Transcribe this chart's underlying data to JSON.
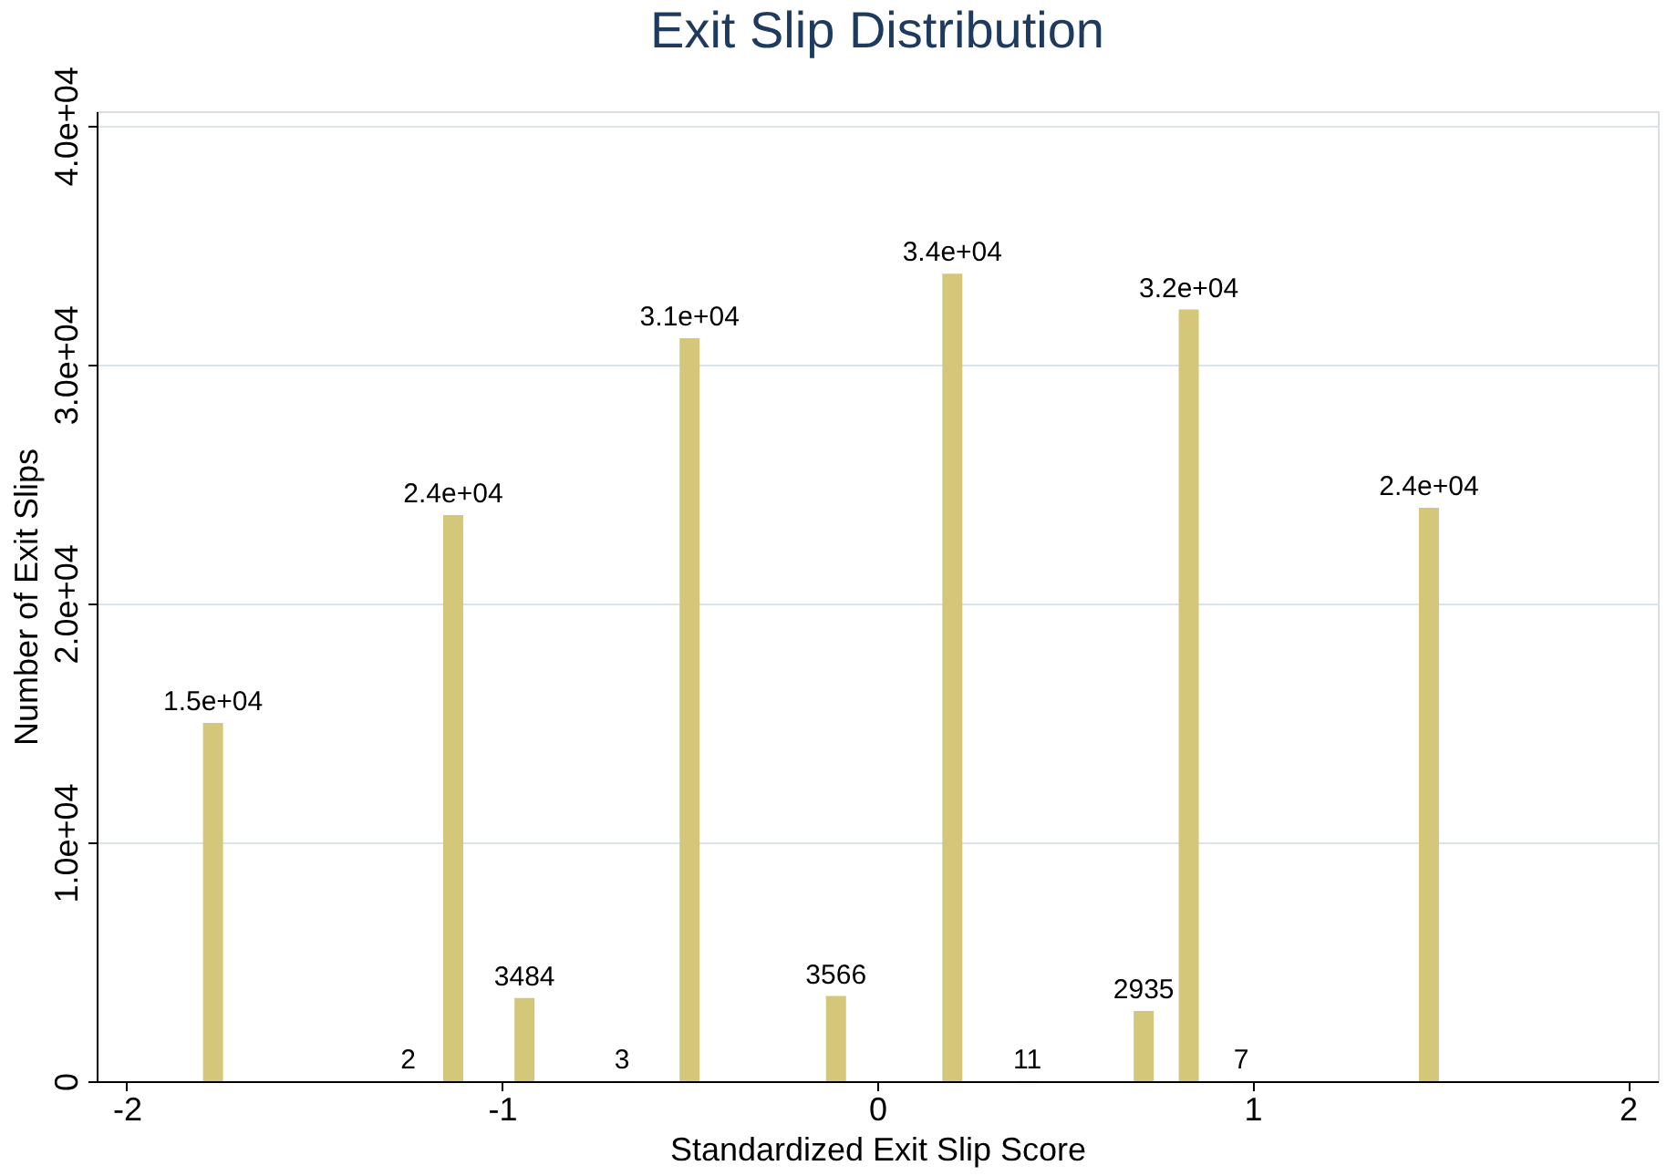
{
  "chart_data": {
    "type": "bar",
    "title": "Exit Slip Distribution",
    "xlabel": "Standardized Exit Slip Score",
    "ylabel": "Number of Exit Slips",
    "x": [
      -1.77,
      -1.25,
      -1.13,
      -0.94,
      -0.68,
      -0.5,
      -0.11,
      0.2,
      0.4,
      0.71,
      0.83,
      0.97,
      1.47
    ],
    "values": [
      15000,
      2,
      23700,
      3484,
      3,
      31100,
      3566,
      33800,
      11,
      2935,
      32300,
      7,
      24000
    ],
    "value_labels": [
      "1.5e+04",
      "2",
      "2.4e+04",
      "3484",
      "3",
      "3.1e+04",
      "3566",
      "3.4e+04",
      "11",
      "2935",
      "3.2e+04",
      "7",
      "2.4e+04"
    ],
    "color": "#d4c77a",
    "xlim": [
      -2.08,
      2.08
    ],
    "xticks": [
      -2,
      -1,
      0,
      1,
      2
    ],
    "ylim": [
      0,
      40600
    ],
    "yticks": [
      0,
      {
        "value": 10000,
        "label": "1.0e+04"
      },
      {
        "value": 20000,
        "label": "2.0e+04"
      },
      {
        "value": 30000,
        "label": "3.0e+04"
      },
      {
        "value": 40000,
        "label": "4.0e+04"
      }
    ],
    "grid": "y"
  }
}
